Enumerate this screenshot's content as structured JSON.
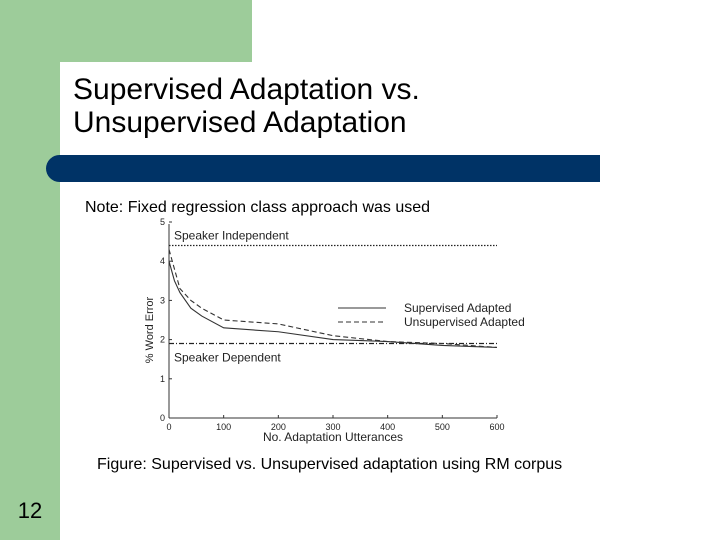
{
  "slide": {
    "title_line1": "Supervised Adaptation vs.",
    "title_line2": "Unsupervised Adaptation",
    "note": "Note: Fixed regression class approach was used",
    "caption": "Figure: Supervised vs. Unsupervised adaptation using RM corpus",
    "page_number": "12"
  },
  "colors": {
    "accent_green": "#9dcc9a",
    "title_bar": "#003366"
  },
  "chart_data": {
    "type": "line",
    "xlabel": "No. Adaptation Utterances",
    "ylabel": "% Word Error",
    "xlim": [
      0,
      600
    ],
    "ylim": [
      0,
      5
    ],
    "xticks": [
      0,
      100,
      200,
      300,
      400,
      500,
      600
    ],
    "yticks": [
      0,
      1,
      2,
      3,
      4,
      5
    ],
    "grid": false,
    "legend_position": "upper-right",
    "series": [
      {
        "name": "Supervised Adapted",
        "style": "solid",
        "x": [
          0,
          10,
          20,
          40,
          60,
          100,
          200,
          300,
          400,
          500,
          600
        ],
        "y": [
          4.0,
          3.5,
          3.2,
          2.8,
          2.6,
          2.3,
          2.2,
          2.0,
          1.95,
          1.85,
          1.8
        ]
      },
      {
        "name": "Unsupervised Adapted",
        "style": "dashed",
        "x": [
          0,
          10,
          20,
          40,
          60,
          100,
          200,
          300,
          400,
          500,
          600
        ],
        "y": [
          4.3,
          3.8,
          3.3,
          3.0,
          2.8,
          2.5,
          2.4,
          2.1,
          1.95,
          1.9,
          1.8
        ]
      }
    ],
    "reference_lines": [
      {
        "label": "Speaker Independent",
        "y": 4.4,
        "style": "dotted"
      },
      {
        "label": "Speaker Dependent",
        "y": 1.9,
        "style": "dash-dot"
      }
    ]
  }
}
